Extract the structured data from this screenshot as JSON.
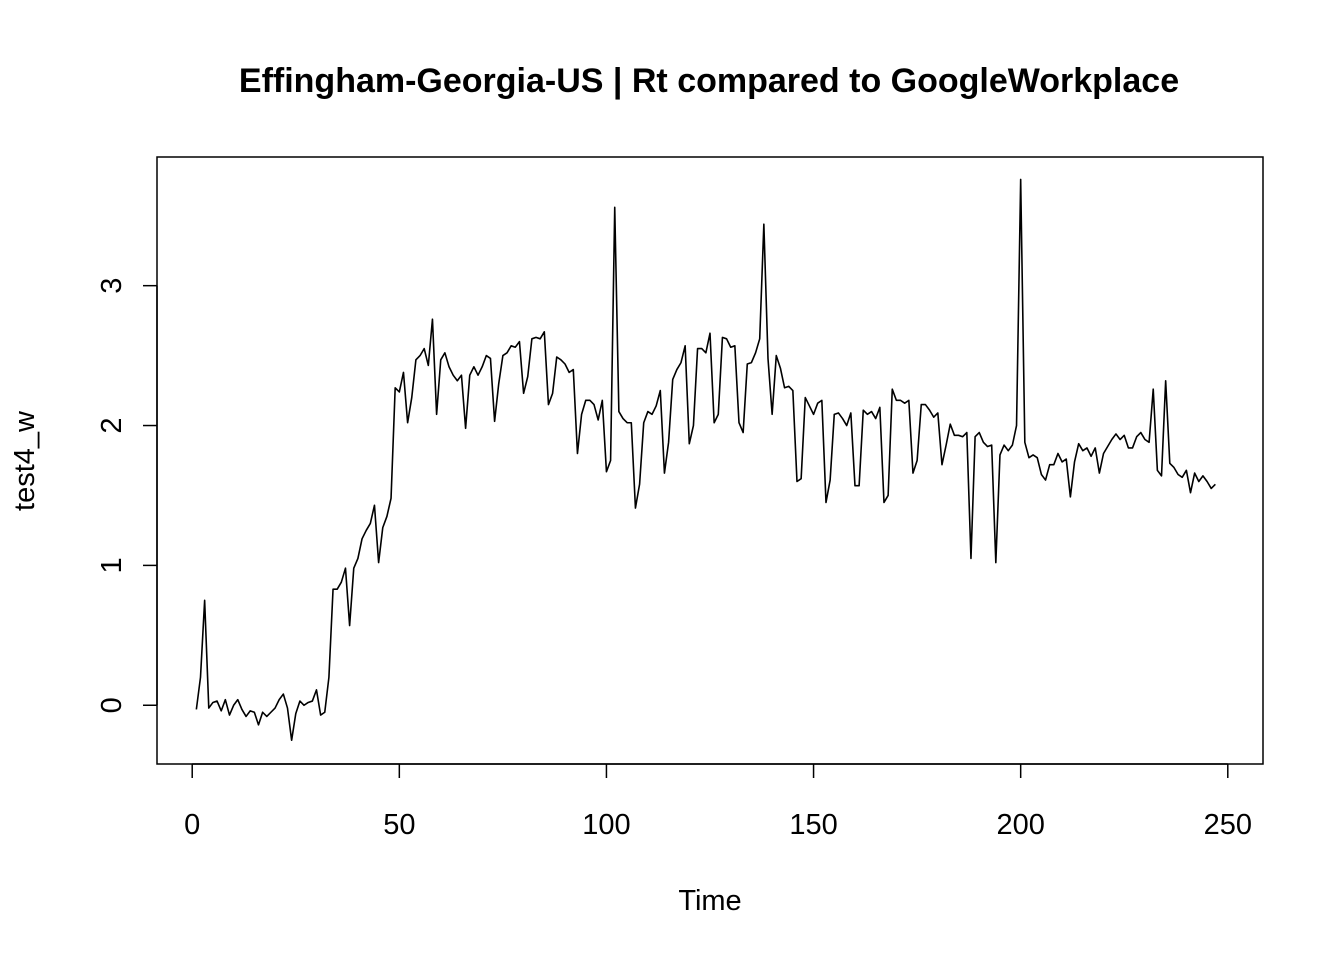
{
  "chart_data": {
    "type": "line",
    "title": "Effingham-Georgia-US | Rt compared to GoogleWorkplace",
    "xlabel": "Time",
    "ylabel": "test4_w",
    "xlim": [
      -8.5,
      258.5
    ],
    "ylim": [
      -0.42,
      3.92
    ],
    "xticks": [
      0,
      50,
      100,
      150,
      200,
      250
    ],
    "yticks": [
      0,
      1,
      2,
      3
    ],
    "grid": false,
    "series": [
      {
        "values": [
          -0.03,
          0.2,
          0.75,
          -0.02,
          0.02,
          0.03,
          -0.04,
          0.04,
          -0.07,
          0.0,
          0.04,
          -0.03,
          -0.08,
          -0.04,
          -0.05,
          -0.14,
          -0.05,
          -0.08,
          -0.05,
          -0.02,
          0.04,
          0.08,
          -0.02,
          -0.25,
          -0.06,
          0.03,
          0.0,
          0.02,
          0.03,
          0.11,
          -0.07,
          -0.05,
          0.2,
          0.83,
          0.83,
          0.88,
          0.98,
          0.57,
          0.98,
          1.05,
          1.19,
          1.25,
          1.3,
          1.43,
          1.02,
          1.27,
          1.35,
          1.48,
          2.27,
          2.24,
          2.38,
          2.02,
          2.2,
          2.47,
          2.5,
          2.55,
          2.43,
          2.76,
          2.08,
          2.47,
          2.52,
          2.42,
          2.36,
          2.32,
          2.36,
          1.98,
          2.36,
          2.42,
          2.36,
          2.42,
          2.5,
          2.48,
          2.03,
          2.3,
          2.5,
          2.52,
          2.57,
          2.56,
          2.6,
          2.23,
          2.35,
          2.62,
          2.63,
          2.62,
          2.67,
          2.15,
          2.23,
          2.49,
          2.47,
          2.44,
          2.38,
          2.4,
          1.8,
          2.08,
          2.18,
          2.18,
          2.15,
          2.04,
          2.18,
          1.67,
          1.75,
          3.56,
          2.1,
          2.05,
          2.02,
          2.02,
          1.41,
          1.58,
          2.02,
          2.1,
          2.08,
          2.14,
          2.25,
          1.66,
          1.88,
          2.33,
          2.4,
          2.45,
          2.57,
          1.87,
          2.0,
          2.55,
          2.55,
          2.52,
          2.66,
          2.02,
          2.08,
          2.63,
          2.62,
          2.56,
          2.57,
          2.02,
          1.95,
          2.44,
          2.45,
          2.52,
          2.62,
          3.44,
          2.48,
          2.08,
          2.5,
          2.41,
          2.27,
          2.28,
          2.25,
          1.6,
          1.62,
          2.2,
          2.14,
          2.08,
          2.16,
          2.18,
          1.45,
          1.61,
          2.08,
          2.09,
          2.05,
          2.0,
          2.09,
          1.57,
          1.57,
          2.11,
          2.08,
          2.1,
          2.05,
          2.13,
          1.45,
          1.5,
          2.26,
          2.18,
          2.18,
          2.16,
          2.18,
          1.66,
          1.75,
          2.15,
          2.15,
          2.11,
          2.06,
          2.09,
          1.72,
          1.86,
          2.01,
          1.93,
          1.93,
          1.92,
          1.95,
          1.05,
          1.92,
          1.95,
          1.88,
          1.85,
          1.86,
          1.02,
          1.79,
          1.86,
          1.82,
          1.86,
          2.0,
          3.76,
          1.88,
          1.77,
          1.79,
          1.77,
          1.65,
          1.61,
          1.72,
          1.72,
          1.8,
          1.74,
          1.76,
          1.49,
          1.74,
          1.87,
          1.82,
          1.84,
          1.78,
          1.84,
          1.66,
          1.8,
          1.85,
          1.9,
          1.94,
          1.9,
          1.93,
          1.84,
          1.84,
          1.92,
          1.95,
          1.9,
          1.88,
          2.26,
          1.68,
          1.64,
          2.32,
          1.73,
          1.7,
          1.65,
          1.63,
          1.68,
          1.52,
          1.66,
          1.6,
          1.64,
          1.6,
          1.55,
          1.58
        ]
      }
    ]
  }
}
